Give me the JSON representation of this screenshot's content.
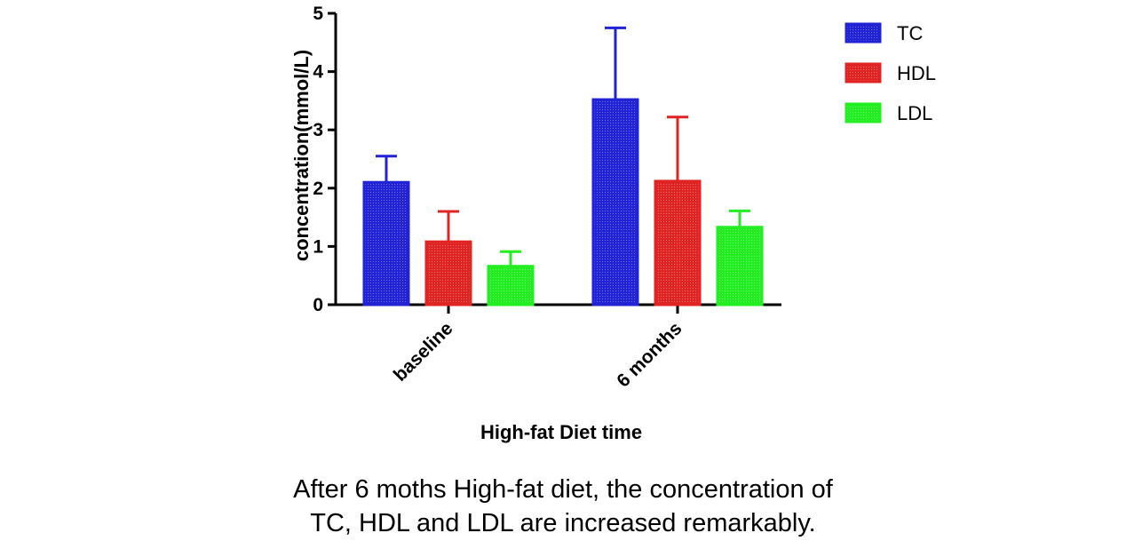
{
  "chart_data": {
    "type": "bar",
    "categories": [
      "baseline",
      "6 months"
    ],
    "series": [
      {
        "name": "TC",
        "values": [
          2.1,
          3.52
        ],
        "errors": [
          0.45,
          1.23
        ],
        "color": "#2323d6"
      },
      {
        "name": "HDL",
        "values": [
          1.08,
          2.12
        ],
        "errors": [
          0.52,
          1.1
        ],
        "color": "#e02424"
      },
      {
        "name": "LDL",
        "values": [
          0.66,
          1.33
        ],
        "errors": [
          0.25,
          0.28
        ],
        "color": "#22ee22"
      }
    ],
    "xlabel": "High-fat Diet time",
    "ylabel": "concentration(mmol/L)",
    "ylim": [
      0,
      5
    ],
    "yticks": [
      0,
      1,
      2,
      3,
      4,
      5
    ],
    "legend_position": "top-right",
    "grid": false
  },
  "caption": {
    "line1": "After 6 moths High-fat diet, the concentration of",
    "line2": "TC, HDL and LDL are increased remarkably."
  }
}
